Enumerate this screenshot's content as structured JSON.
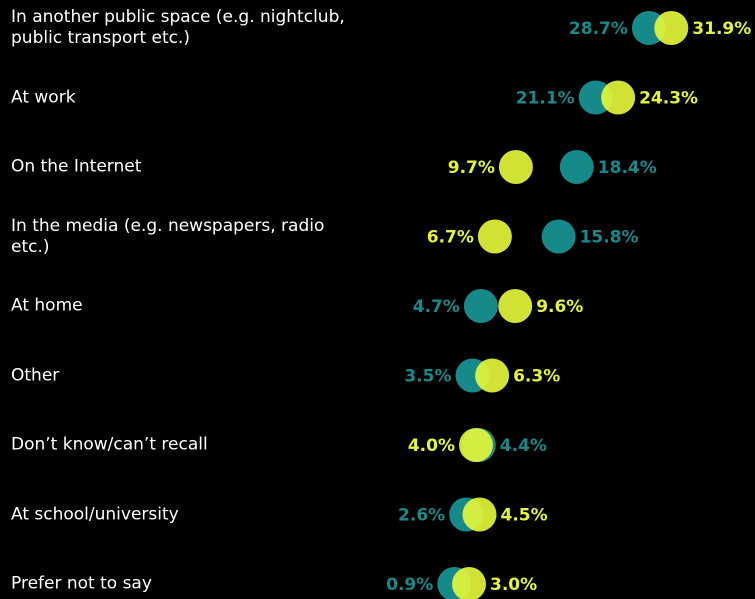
{
  "chart_data": {
    "type": "dot",
    "categories": [
      "In another public space (e.g. nightclub, public transport etc.)",
      "At work",
      "On the Internet",
      "In the media (e.g. newspapers, radio etc.)",
      "At home",
      "Other",
      "Don’t know/can’t recall",
      "At school/university",
      "Prefer not to say"
    ],
    "series": [
      {
        "color": "#16898a",
        "values": [
          28.7,
          21.1,
          18.4,
          15.8,
          4.7,
          3.5,
          4.4,
          2.6,
          0.9
        ],
        "value_labels": [
          "28.7%",
          "21.1%",
          "18.4%",
          "15.8%",
          "4.7%",
          "3.5%",
          "4.4%",
          "2.6%",
          "0.9%"
        ]
      },
      {
        "color": "#e4f53a",
        "values": [
          31.9,
          24.3,
          9.7,
          6.7,
          9.6,
          6.3,
          4.0,
          4.5,
          3.0
        ],
        "value_labels": [
          "31.9%",
          "24.3%",
          "9.7%",
          "6.7%",
          "9.6%",
          "6.3%",
          "4.0%",
          "4.5%",
          "3.0%"
        ]
      }
    ],
    "xlim": [
      0,
      40
    ]
  }
}
